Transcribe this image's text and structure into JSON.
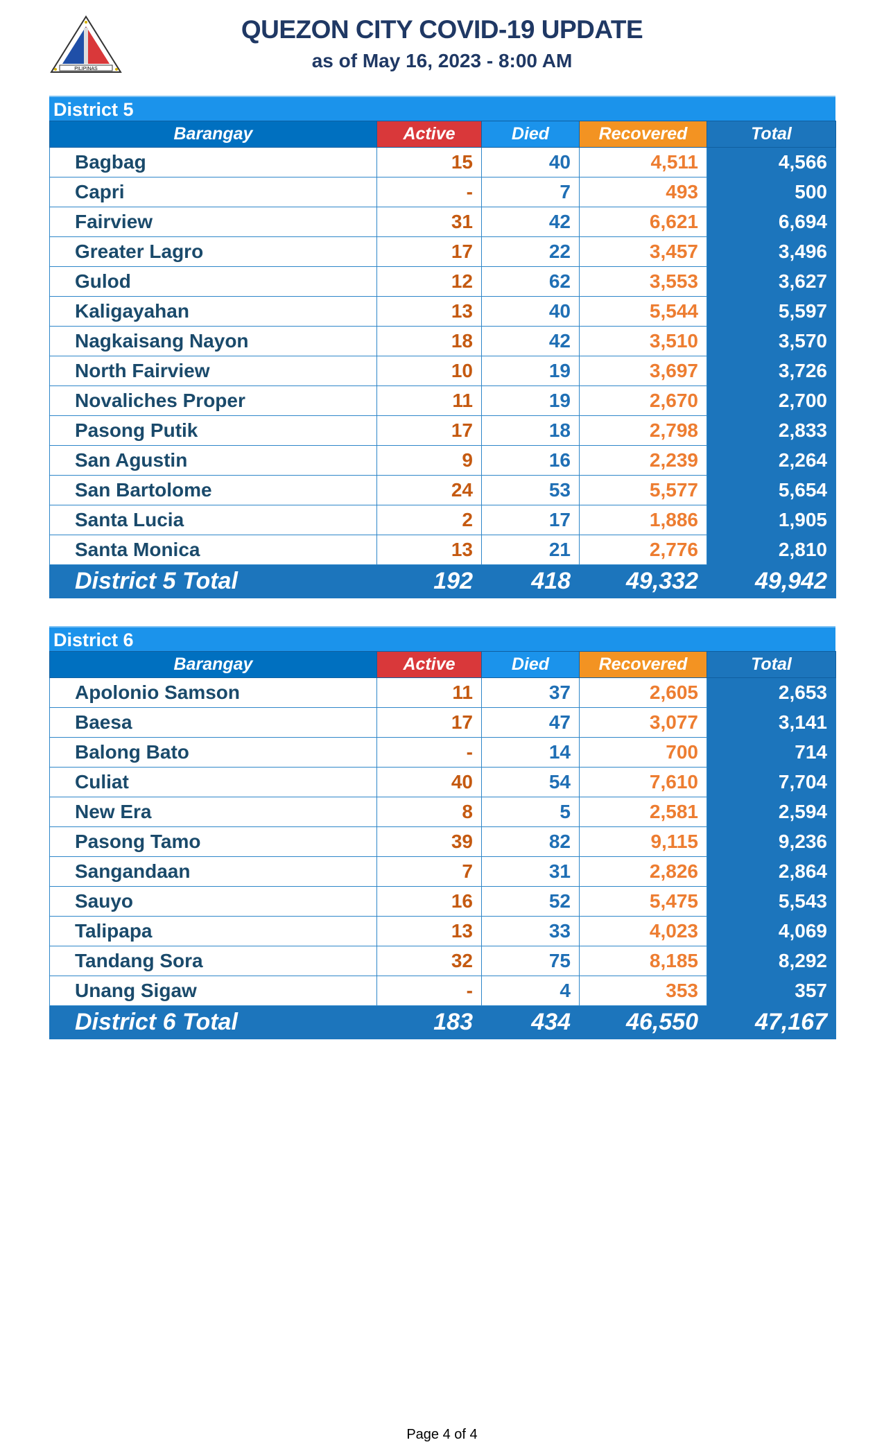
{
  "header": {
    "title": "QUEZON CITY COVID-19 UPDATE",
    "subtitle": "as of May 16, 2023 - 8:00 AM",
    "logo_text": [
      "LUNGSOD",
      "QUEZON",
      "PILIPINAS"
    ]
  },
  "columns": {
    "barangay": "Barangay",
    "active": "Active",
    "died": "Died",
    "recovered": "Recovered",
    "total": "Total"
  },
  "colors": {
    "district_bar": "#1b93eb",
    "active": "#d9383a",
    "died": "#1b93eb",
    "recovered": "#f39322",
    "total": "#1c75bc"
  },
  "districts": [
    {
      "name": "District 5",
      "rows": [
        [
          "Bagbag",
          "15",
          "40",
          "4,511",
          "4,566"
        ],
        [
          "Capri",
          "-",
          "7",
          "493",
          "500"
        ],
        [
          "Fairview",
          "31",
          "42",
          "6,621",
          "6,694"
        ],
        [
          "Greater Lagro",
          "17",
          "22",
          "3,457",
          "3,496"
        ],
        [
          "Gulod",
          "12",
          "62",
          "3,553",
          "3,627"
        ],
        [
          "Kaligayahan",
          "13",
          "40",
          "5,544",
          "5,597"
        ],
        [
          "Nagkaisang Nayon",
          "18",
          "42",
          "3,510",
          "3,570"
        ],
        [
          "North Fairview",
          "10",
          "19",
          "3,697",
          "3,726"
        ],
        [
          "Novaliches Proper",
          "11",
          "19",
          "2,670",
          "2,700"
        ],
        [
          "Pasong Putik",
          "17",
          "18",
          "2,798",
          "2,833"
        ],
        [
          "San Agustin",
          "9",
          "16",
          "2,239",
          "2,264"
        ],
        [
          "San Bartolome",
          "24",
          "53",
          "5,577",
          "5,654"
        ],
        [
          "Santa Lucia",
          "2",
          "17",
          "1,886",
          "1,905"
        ],
        [
          "Santa Monica",
          "13",
          "21",
          "2,776",
          "2,810"
        ]
      ],
      "total": [
        "District 5 Total",
        "192",
        "418",
        "49,332",
        "49,942"
      ]
    },
    {
      "name": "District 6",
      "rows": [
        [
          "Apolonio Samson",
          "11",
          "37",
          "2,605",
          "2,653"
        ],
        [
          "Baesa",
          "17",
          "47",
          "3,077",
          "3,141"
        ],
        [
          "Balong Bato",
          "-",
          "14",
          "700",
          "714"
        ],
        [
          "Culiat",
          "40",
          "54",
          "7,610",
          "7,704"
        ],
        [
          "New Era",
          "8",
          "5",
          "2,581",
          "2,594"
        ],
        [
          "Pasong Tamo",
          "39",
          "82",
          "9,115",
          "9,236"
        ],
        [
          "Sangandaan",
          "7",
          "31",
          "2,826",
          "2,864"
        ],
        [
          "Sauyo",
          "16",
          "52",
          "5,475",
          "5,543"
        ],
        [
          "Talipapa",
          "13",
          "33",
          "4,023",
          "4,069"
        ],
        [
          "Tandang Sora",
          "32",
          "75",
          "8,185",
          "8,292"
        ],
        [
          "Unang Sigaw",
          "-",
          "4",
          "353",
          "357"
        ]
      ],
      "total": [
        "District 6 Total",
        "183",
        "434",
        "46,550",
        "47,167"
      ]
    }
  ],
  "footer": {
    "page": "Page 4 of 4"
  }
}
